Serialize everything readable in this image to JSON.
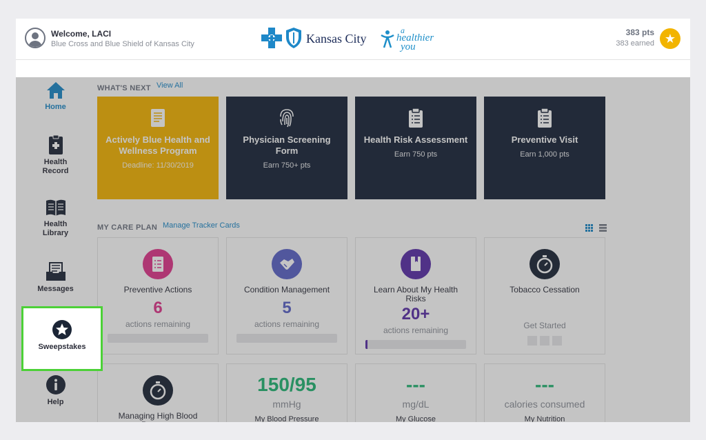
{
  "header": {
    "welcome": "Welcome, LACI",
    "subtitle": "Blue Cross and Blue Shield of Kansas City",
    "logo_city": "Kansas City",
    "logo_tagline_a": "a",
    "logo_tagline_b": "healthier",
    "logo_tagline_c": "you",
    "points": "383 pts",
    "earned": "383 earned",
    "star": "★"
  },
  "sidebar": {
    "items": [
      {
        "label": "Home",
        "icon": "home-icon",
        "state": "active"
      },
      {
        "label": "Health Record",
        "icon": "health-record-icon"
      },
      {
        "label": "Health Library",
        "icon": "book-icon"
      },
      {
        "label": "Messages",
        "icon": "inbox-icon"
      },
      {
        "label": "Sweepstakes",
        "icon": "star-icon",
        "state": "highlighted"
      },
      {
        "label": "Help",
        "icon": "info-icon"
      }
    ]
  },
  "whats_next": {
    "heading": "WHAT'S NEXT",
    "link": "View All",
    "cards": [
      {
        "title": "Actively Blue Health and Wellness Program",
        "subtitle": "Deadline: 11/30/2019",
        "icon": "document-icon",
        "color": "#f4b400"
      },
      {
        "title": "Physician Screening Form",
        "subtitle": "Earn 750+ pts",
        "icon": "fingerprint-icon",
        "color": "#172338"
      },
      {
        "title": "Health Risk Assessment",
        "subtitle": "Earn 750 pts",
        "icon": "clipboard-icon",
        "color": "#172338"
      },
      {
        "title": "Preventive Visit",
        "subtitle": "Earn 1,000 pts",
        "icon": "clipboard-icon",
        "color": "#172338"
      }
    ]
  },
  "care_plan": {
    "heading": "MY CARE PLAN",
    "link": "Manage Tracker Cards",
    "cards": [
      {
        "title": "Preventive Actions",
        "count": "6",
        "caption": "actions remaining",
        "color": "#e0368b",
        "icon": "checklist-icon",
        "progress": 0
      },
      {
        "title": "Condition Management",
        "count": "5",
        "caption": "actions remaining",
        "color": "#5b63c8",
        "icon": "handshake-icon",
        "progress": 0
      },
      {
        "title": "Learn About My Health Risks",
        "count": "20+",
        "caption": "actions remaining",
        "color": "#5a2ea8",
        "icon": "book-icon",
        "progress": 0.02
      },
      {
        "title": "Tobacco Cessation",
        "action": "Get Started",
        "color": "#1b2536",
        "icon": "stopwatch-icon"
      }
    ],
    "metrics": [
      {
        "title": "Managing High Blood Pressure",
        "icon": "stopwatch-icon",
        "color": "#1b2536"
      },
      {
        "value": "150/95",
        "unit": "mmHg",
        "label": "My Blood Pressure"
      },
      {
        "value": "---",
        "unit": "mg/dL",
        "label": "My Glucose"
      },
      {
        "value": "---",
        "unit": "calories consumed",
        "label": "My Nutrition"
      }
    ]
  }
}
